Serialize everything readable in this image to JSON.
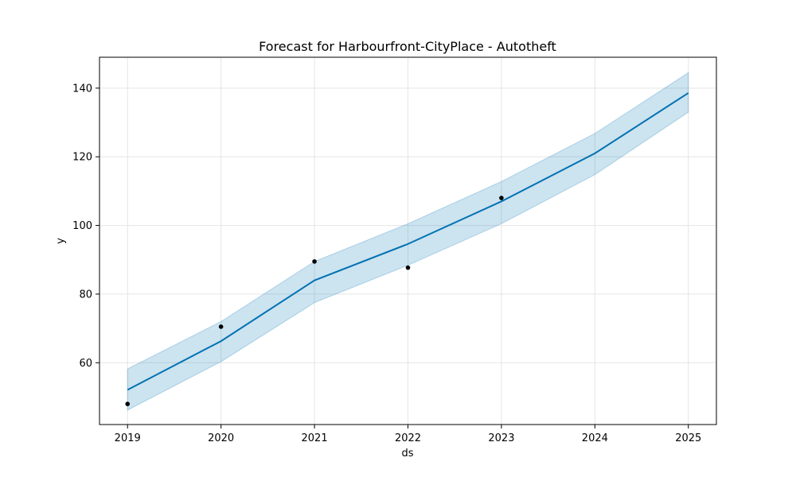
{
  "chart_data": {
    "type": "line",
    "title": "Forecast for Harbourfront-CityPlace - Autotheft",
    "xlabel": "ds",
    "ylabel": "y",
    "x_ticks": [
      "2019",
      "2020",
      "2021",
      "2022",
      "2023",
      "2024",
      "2025"
    ],
    "y_ticks": [
      "60",
      "80",
      "100",
      "120",
      "140"
    ],
    "xlim": [
      2018.7,
      2025.3
    ],
    "ylim": [
      42,
      149
    ],
    "grid": true,
    "x": [
      2019,
      2020,
      2021,
      2022,
      2023,
      2024,
      2025
    ],
    "series": [
      {
        "kind": "forecast",
        "values": [
          52.1,
          66.3,
          84.0,
          94.6,
          107.0,
          121.0,
          138.6
        ]
      },
      {
        "kind": "interval",
        "upper": [
          58.2,
          72.0,
          89.5,
          100.5,
          112.8,
          126.8,
          144.5
        ],
        "lower": [
          46.2,
          60.3,
          77.5,
          88.4,
          100.5,
          114.8,
          133.0
        ]
      },
      {
        "kind": "observed",
        "x": [
          2019,
          2020,
          2021,
          2022,
          2023
        ],
        "values": [
          48,
          70.5,
          89.5,
          87.7,
          108
        ]
      }
    ],
    "colors": {
      "line": "#0072B2",
      "band": "#0072B2",
      "points": "#000000",
      "grid": "#e5e5e5",
      "axes": "#000000"
    }
  }
}
